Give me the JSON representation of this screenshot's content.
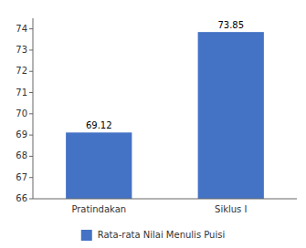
{
  "chart_data": {
    "type": "bar",
    "categories": [
      "Pratindakan",
      "Siklus I"
    ],
    "series": [
      {
        "name": "Rata-rata Nilai Menulis Puisi",
        "color": "#4472C4",
        "values": [
          69.12,
          73.85
        ]
      }
    ],
    "ylim": [
      66,
      74.5
    ],
    "yticks": [
      66,
      67,
      68,
      69,
      70,
      71,
      72,
      73,
      74
    ],
    "data_labels": true,
    "legend": "bottom",
    "grid": false
  }
}
